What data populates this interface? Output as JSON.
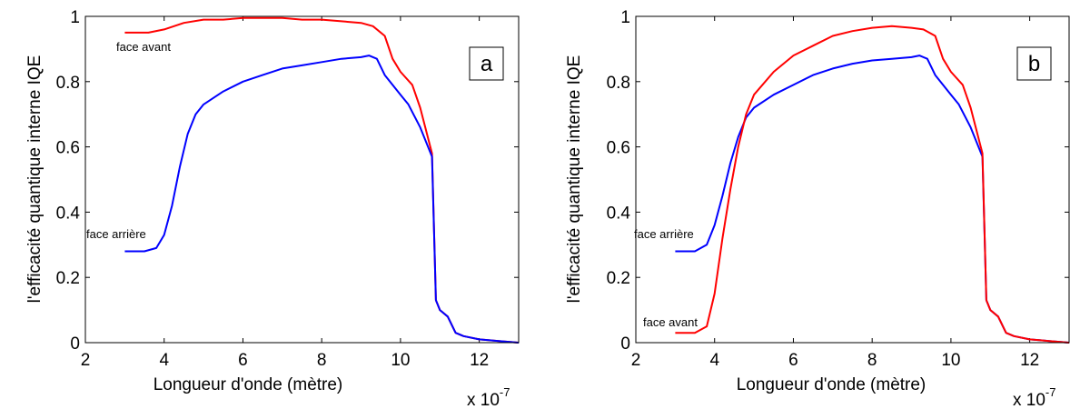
{
  "chart_data": [
    {
      "type": "line",
      "panel_label": "a",
      "xlabel": "Longueur d'onde (mètre)",
      "ylabel": "l'efficacité quantique interne IQE",
      "x_scale_label": "x 10",
      "x_scale_exponent": "-7",
      "xlim": [
        2,
        13
      ],
      "ylim": [
        0,
        1
      ],
      "xticks": [
        "2",
        "4",
        "6",
        "8",
        "10",
        "12"
      ],
      "yticks": [
        "0",
        "0.2",
        "0.4",
        "0.6",
        "0.8",
        "1"
      ],
      "series": [
        {
          "name": "face avant",
          "color": "#ff0000",
          "x": [
            3.0,
            3.6,
            4.0,
            4.5,
            5.0,
            5.5,
            6.0,
            6.5,
            7.0,
            7.5,
            8.0,
            8.5,
            9.0,
            9.3,
            9.6,
            9.8,
            10.0,
            10.3,
            10.5,
            10.8,
            10.9,
            11.0,
            11.2,
            11.4,
            11.6,
            12.0,
            12.5,
            13.0
          ],
          "y": [
            0.95,
            0.95,
            0.96,
            0.98,
            0.99,
            0.99,
            0.995,
            0.995,
            0.995,
            0.99,
            0.99,
            0.985,
            0.98,
            0.97,
            0.94,
            0.87,
            0.83,
            0.79,
            0.72,
            0.58,
            0.13,
            0.1,
            0.08,
            0.03,
            0.02,
            0.01,
            0.005,
            0.0
          ]
        },
        {
          "name": "face arrière",
          "color": "#0000ff",
          "x": [
            3.0,
            3.5,
            3.8,
            4.0,
            4.2,
            4.4,
            4.6,
            4.8,
            5.0,
            5.5,
            6.0,
            6.5,
            7.0,
            7.5,
            8.0,
            8.5,
            9.0,
            9.2,
            9.4,
            9.6,
            9.8,
            10.0,
            10.2,
            10.5,
            10.8,
            10.9,
            11.0,
            11.2,
            11.4,
            11.6,
            12.0,
            12.5,
            13.0
          ],
          "y": [
            0.28,
            0.28,
            0.29,
            0.33,
            0.42,
            0.54,
            0.64,
            0.7,
            0.73,
            0.77,
            0.8,
            0.82,
            0.84,
            0.85,
            0.86,
            0.87,
            0.875,
            0.88,
            0.87,
            0.82,
            0.79,
            0.76,
            0.73,
            0.66,
            0.57,
            0.13,
            0.1,
            0.08,
            0.03,
            0.02,
            0.01,
            0.005,
            0.0
          ]
        }
      ],
      "annotations": [
        "face avant",
        "face arrière"
      ]
    },
    {
      "type": "line",
      "panel_label": "b",
      "xlabel": "Longueur d'onde (mètre)",
      "ylabel": "l'efficacité quantique interne IQE",
      "x_scale_label": "x 10",
      "x_scale_exponent": "-7",
      "xlim": [
        2,
        13
      ],
      "ylim": [
        0,
        1
      ],
      "xticks": [
        "2",
        "4",
        "6",
        "8",
        "10",
        "12"
      ],
      "yticks": [
        "0",
        "0.2",
        "0.4",
        "0.6",
        "0.8",
        "1"
      ],
      "series": [
        {
          "name": "face arrière",
          "color": "#0000ff",
          "x": [
            3.0,
            3.5,
            3.8,
            4.0,
            4.2,
            4.4,
            4.6,
            4.8,
            5.0,
            5.5,
            6.0,
            6.5,
            7.0,
            7.5,
            8.0,
            8.5,
            9.0,
            9.2,
            9.4,
            9.6,
            9.8,
            10.0,
            10.2,
            10.5,
            10.8,
            10.9,
            11.0,
            11.2,
            11.4,
            11.6,
            12.0,
            12.5,
            13.0
          ],
          "y": [
            0.28,
            0.28,
            0.3,
            0.36,
            0.45,
            0.55,
            0.63,
            0.69,
            0.72,
            0.76,
            0.79,
            0.82,
            0.84,
            0.855,
            0.865,
            0.87,
            0.875,
            0.88,
            0.87,
            0.82,
            0.79,
            0.76,
            0.73,
            0.66,
            0.57,
            0.13,
            0.1,
            0.08,
            0.03,
            0.02,
            0.01,
            0.005,
            0.0
          ]
        },
        {
          "name": "face avant",
          "color": "#ff0000",
          "x": [
            3.0,
            3.5,
            3.8,
            4.0,
            4.2,
            4.4,
            4.6,
            4.8,
            5.0,
            5.5,
            6.0,
            6.5,
            7.0,
            7.5,
            8.0,
            8.5,
            9.0,
            9.3,
            9.6,
            9.8,
            10.0,
            10.3,
            10.5,
            10.8,
            10.9,
            11.0,
            11.2,
            11.4,
            11.6,
            12.0,
            12.5,
            13.0
          ],
          "y": [
            0.03,
            0.03,
            0.05,
            0.15,
            0.32,
            0.47,
            0.6,
            0.7,
            0.76,
            0.83,
            0.88,
            0.91,
            0.94,
            0.955,
            0.965,
            0.97,
            0.965,
            0.96,
            0.94,
            0.87,
            0.83,
            0.79,
            0.72,
            0.58,
            0.13,
            0.1,
            0.08,
            0.03,
            0.02,
            0.01,
            0.005,
            0.0
          ]
        }
      ],
      "annotations": [
        "face arrière",
        "face avant"
      ]
    }
  ]
}
